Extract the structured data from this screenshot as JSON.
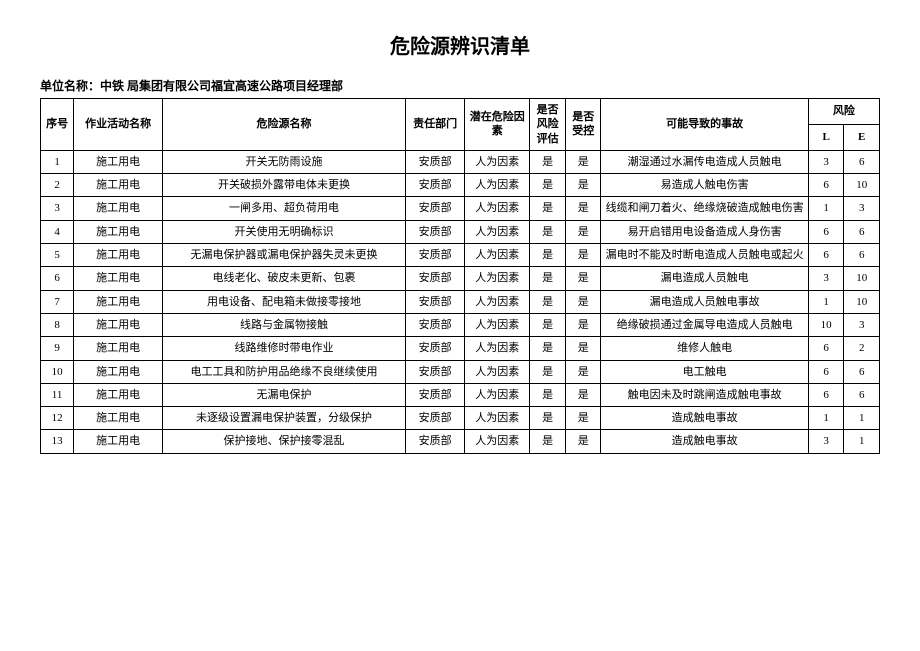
{
  "title": "危险源辨识清单",
  "subtitle_prefix": "单位名称：",
  "subtitle_org": "中铁 局集团有限公司福宜高速公路项目经理部",
  "headers": {
    "idx": "序号",
    "activity": "作业活动名称",
    "hazard": "危险源名称",
    "dept": "责任部门",
    "factor": "潜在危险因素",
    "eval": "是否风险评估",
    "ctrl": "是否受控",
    "accident": "可能导致的事故",
    "risk": "风险",
    "l": "L",
    "e": "E"
  },
  "rows": [
    {
      "idx": "1",
      "activity": "施工用电",
      "hazard": "开关无防雨设施",
      "dept": "安质部",
      "factor": "人为因素",
      "eval": "是",
      "ctrl": "是",
      "accident": "潮湿通过水漏传电造成人员触电",
      "l": "3",
      "e": "6"
    },
    {
      "idx": "2",
      "activity": "施工用电",
      "hazard": "开关破损外露带电体未更换",
      "dept": "安质部",
      "factor": "人为因素",
      "eval": "是",
      "ctrl": "是",
      "accident": "易造成人触电伤害",
      "l": "6",
      "e": "10"
    },
    {
      "idx": "3",
      "activity": "施工用电",
      "hazard": "一闸多用、超负荷用电",
      "dept": "安质部",
      "factor": "人为因素",
      "eval": "是",
      "ctrl": "是",
      "accident": "线缆和闸刀着火、绝缘烧破造成触电伤害",
      "l": "1",
      "e": "3"
    },
    {
      "idx": "4",
      "activity": "施工用电",
      "hazard": "开关使用无明确标识",
      "dept": "安质部",
      "factor": "人为因素",
      "eval": "是",
      "ctrl": "是",
      "accident": "易开启错用电设备造成人身伤害",
      "l": "6",
      "e": "6"
    },
    {
      "idx": "5",
      "activity": "施工用电",
      "hazard": "无漏电保护器或漏电保护器失灵未更换",
      "dept": "安质部",
      "factor": "人为因素",
      "eval": "是",
      "ctrl": "是",
      "accident": "漏电时不能及时断电造成人员触电或起火",
      "l": "6",
      "e": "6"
    },
    {
      "idx": "6",
      "activity": "施工用电",
      "hazard": "电线老化、破皮未更新、包裹",
      "dept": "安质部",
      "factor": "人为因素",
      "eval": "是",
      "ctrl": "是",
      "accident": "漏电造成人员触电",
      "l": "3",
      "e": "10"
    },
    {
      "idx": "7",
      "activity": "施工用电",
      "hazard": "用电设备、配电箱未做接零接地",
      "dept": "安质部",
      "factor": "人为因素",
      "eval": "是",
      "ctrl": "是",
      "accident": "漏电造成人员触电事故",
      "l": "1",
      "e": "10"
    },
    {
      "idx": "8",
      "activity": "施工用电",
      "hazard": "线路与金属物接触",
      "dept": "安质部",
      "factor": "人为因素",
      "eval": "是",
      "ctrl": "是",
      "accident": "绝缘破损通过金属导电造成人员触电",
      "l": "10",
      "e": "3"
    },
    {
      "idx": "9",
      "activity": "施工用电",
      "hazard": "线路维修时带电作业",
      "dept": "安质部",
      "factor": "人为因素",
      "eval": "是",
      "ctrl": "是",
      "accident": "维修人触电",
      "l": "6",
      "e": "2"
    },
    {
      "idx": "10",
      "activity": "施工用电",
      "hazard": "电工工具和防护用品绝缘不良继续使用",
      "dept": "安质部",
      "factor": "人为因素",
      "eval": "是",
      "ctrl": "是",
      "accident": "电工触电",
      "l": "6",
      "e": "6"
    },
    {
      "idx": "11",
      "activity": "施工用电",
      "hazard": "无漏电保护",
      "dept": "安质部",
      "factor": "人为因素",
      "eval": "是",
      "ctrl": "是",
      "accident": "触电因未及时跳闸造成触电事故",
      "l": "6",
      "e": "6"
    },
    {
      "idx": "12",
      "activity": "施工用电",
      "hazard": "未逐级设置漏电保护装置，分级保护",
      "dept": "安质部",
      "factor": "人为因素",
      "eval": "是",
      "ctrl": "是",
      "accident": "造成触电事故",
      "l": "1",
      "e": "1"
    },
    {
      "idx": "13",
      "activity": "施工用电",
      "hazard": "保护接地、保护接零混乱",
      "dept": "安质部",
      "factor": "人为因素",
      "eval": "是",
      "ctrl": "是",
      "accident": "造成触电事故",
      "l": "3",
      "e": "1"
    }
  ]
}
